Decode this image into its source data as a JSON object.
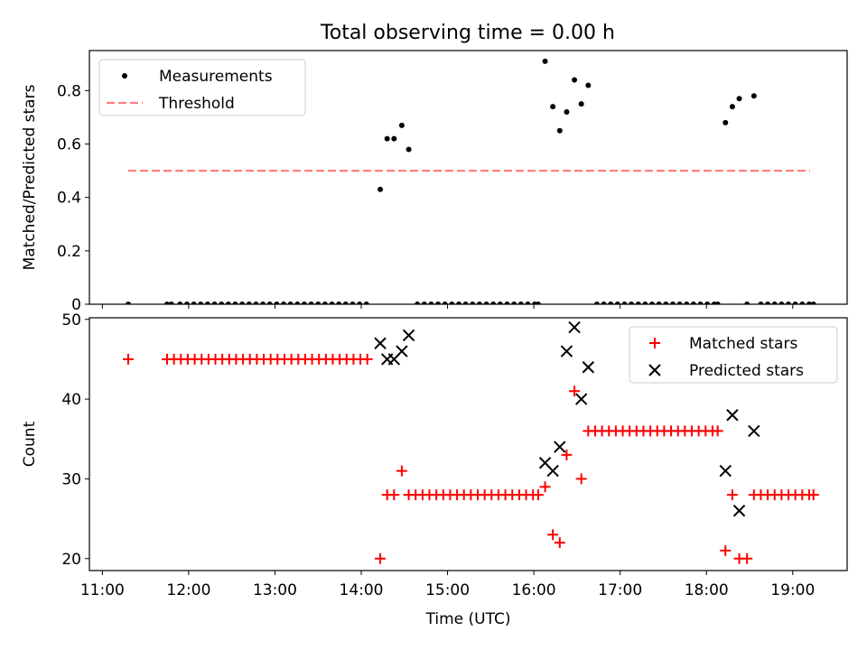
{
  "figure": {
    "title": "Total observing time = 0.00 h"
  },
  "chart_data": [
    {
      "type": "scatter",
      "ylabel": "Matched/Predicted stars",
      "xlim": [
        10.85,
        19.63
      ],
      "ylim": [
        0.0,
        0.95
      ],
      "yticks": [
        0.0,
        0.2,
        0.4,
        0.6,
        0.8
      ],
      "legend": {
        "position": "top-left"
      },
      "series": [
        {
          "name": "Measurements",
          "kind": "points",
          "color": "#000000",
          "points": [
            [
              11.3,
              0
            ],
            [
              11.75,
              0
            ],
            [
              11.8,
              0
            ],
            [
              11.9,
              0
            ],
            [
              11.98,
              0
            ],
            [
              12.06,
              0
            ],
            [
              12.14,
              0
            ],
            [
              12.22,
              0
            ],
            [
              12.3,
              0
            ],
            [
              12.38,
              0
            ],
            [
              12.46,
              0
            ],
            [
              12.54,
              0
            ],
            [
              12.62,
              0
            ],
            [
              12.7,
              0
            ],
            [
              12.78,
              0
            ],
            [
              12.86,
              0
            ],
            [
              12.94,
              0
            ],
            [
              13.02,
              0
            ],
            [
              13.1,
              0
            ],
            [
              13.18,
              0
            ],
            [
              13.26,
              0
            ],
            [
              13.34,
              0
            ],
            [
              13.42,
              0
            ],
            [
              13.5,
              0
            ],
            [
              13.58,
              0
            ],
            [
              13.66,
              0
            ],
            [
              13.74,
              0
            ],
            [
              13.82,
              0
            ],
            [
              13.9,
              0
            ],
            [
              13.98,
              0
            ],
            [
              14.06,
              0
            ],
            [
              14.22,
              0.43
            ],
            [
              14.3,
              0.62
            ],
            [
              14.38,
              0.62
            ],
            [
              14.47,
              0.67
            ],
            [
              14.55,
              0.58
            ],
            [
              14.65,
              0
            ],
            [
              14.73,
              0
            ],
            [
              14.81,
              0
            ],
            [
              14.89,
              0
            ],
            [
              14.97,
              0
            ],
            [
              15.05,
              0
            ],
            [
              15.13,
              0
            ],
            [
              15.21,
              0
            ],
            [
              15.29,
              0
            ],
            [
              15.37,
              0
            ],
            [
              15.45,
              0
            ],
            [
              15.53,
              0
            ],
            [
              15.61,
              0
            ],
            [
              15.69,
              0
            ],
            [
              15.77,
              0
            ],
            [
              15.85,
              0
            ],
            [
              15.93,
              0
            ],
            [
              16.01,
              0
            ],
            [
              16.05,
              0
            ],
            [
              16.13,
              0.91
            ],
            [
              16.22,
              0.74
            ],
            [
              16.3,
              0.65
            ],
            [
              16.38,
              0.72
            ],
            [
              16.47,
              0.84
            ],
            [
              16.55,
              0.75
            ],
            [
              16.63,
              0.82
            ],
            [
              16.73,
              0
            ],
            [
              16.81,
              0
            ],
            [
              16.89,
              0
            ],
            [
              16.97,
              0
            ],
            [
              17.05,
              0
            ],
            [
              17.13,
              0
            ],
            [
              17.21,
              0
            ],
            [
              17.29,
              0
            ],
            [
              17.37,
              0
            ],
            [
              17.45,
              0
            ],
            [
              17.53,
              0
            ],
            [
              17.61,
              0
            ],
            [
              17.69,
              0
            ],
            [
              17.77,
              0
            ],
            [
              17.85,
              0
            ],
            [
              17.93,
              0
            ],
            [
              18.01,
              0
            ],
            [
              18.09,
              0
            ],
            [
              18.13,
              0
            ],
            [
              18.22,
              0.68
            ],
            [
              18.3,
              0.74
            ],
            [
              18.38,
              0.77
            ],
            [
              18.55,
              0.78
            ],
            [
              18.47,
              0
            ],
            [
              18.63,
              0
            ],
            [
              18.71,
              0
            ],
            [
              18.79,
              0
            ],
            [
              18.87,
              0
            ],
            [
              18.95,
              0
            ],
            [
              19.03,
              0
            ],
            [
              19.11,
              0
            ],
            [
              19.19,
              0
            ],
            [
              19.24,
              0
            ]
          ]
        },
        {
          "name": "Threshold",
          "kind": "dashed-line",
          "color": "#ff7f7f",
          "points": [
            [
              11.3,
              0.5
            ],
            [
              19.2,
              0.5
            ]
          ]
        }
      ]
    },
    {
      "type": "scatter",
      "xlabel": "Time (UTC)",
      "ylabel": "Count",
      "xlim": [
        10.85,
        19.63
      ],
      "ylim": [
        18.5,
        50.2
      ],
      "yticks": [
        20,
        30,
        40,
        50
      ],
      "xticks": [
        11,
        12,
        13,
        14,
        15,
        16,
        17,
        18,
        19
      ],
      "xtick_labels": [
        "11:00",
        "12:00",
        "13:00",
        "14:00",
        "15:00",
        "16:00",
        "17:00",
        "18:00",
        "19:00"
      ],
      "legend": {
        "position": "top-right"
      },
      "series": [
        {
          "name": "Matched stars",
          "kind": "plus",
          "color": "#ff0000",
          "points": [
            [
              11.3,
              45
            ],
            [
              11.75,
              45
            ],
            [
              11.83,
              45
            ],
            [
              11.91,
              45
            ],
            [
              11.99,
              45
            ],
            [
              12.07,
              45
            ],
            [
              12.15,
              45
            ],
            [
              12.23,
              45
            ],
            [
              12.31,
              45
            ],
            [
              12.39,
              45
            ],
            [
              12.47,
              45
            ],
            [
              12.55,
              45
            ],
            [
              12.63,
              45
            ],
            [
              12.71,
              45
            ],
            [
              12.79,
              45
            ],
            [
              12.87,
              45
            ],
            [
              12.95,
              45
            ],
            [
              13.03,
              45
            ],
            [
              13.11,
              45
            ],
            [
              13.19,
              45
            ],
            [
              13.27,
              45
            ],
            [
              13.35,
              45
            ],
            [
              13.43,
              45
            ],
            [
              13.51,
              45
            ],
            [
              13.59,
              45
            ],
            [
              13.67,
              45
            ],
            [
              13.75,
              45
            ],
            [
              13.83,
              45
            ],
            [
              13.91,
              45
            ],
            [
              13.99,
              45
            ],
            [
              14.07,
              45
            ],
            [
              14.22,
              20
            ],
            [
              14.3,
              28
            ],
            [
              14.38,
              28
            ],
            [
              14.47,
              31
            ],
            [
              14.55,
              28
            ],
            [
              14.63,
              28
            ],
            [
              14.71,
              28
            ],
            [
              14.79,
              28
            ],
            [
              14.87,
              28
            ],
            [
              14.95,
              28
            ],
            [
              15.03,
              28
            ],
            [
              15.11,
              28
            ],
            [
              15.19,
              28
            ],
            [
              15.27,
              28
            ],
            [
              15.35,
              28
            ],
            [
              15.43,
              28
            ],
            [
              15.51,
              28
            ],
            [
              15.59,
              28
            ],
            [
              15.67,
              28
            ],
            [
              15.75,
              28
            ],
            [
              15.83,
              28
            ],
            [
              15.91,
              28
            ],
            [
              15.99,
              28
            ],
            [
              16.05,
              28
            ],
            [
              16.13,
              29
            ],
            [
              16.22,
              23
            ],
            [
              16.3,
              22
            ],
            [
              16.38,
              33
            ],
            [
              16.47,
              41
            ],
            [
              16.55,
              30
            ],
            [
              16.63,
              36
            ],
            [
              16.71,
              36
            ],
            [
              16.79,
              36
            ],
            [
              16.87,
              36
            ],
            [
              16.95,
              36
            ],
            [
              17.03,
              36
            ],
            [
              17.11,
              36
            ],
            [
              17.19,
              36
            ],
            [
              17.27,
              36
            ],
            [
              17.35,
              36
            ],
            [
              17.43,
              36
            ],
            [
              17.51,
              36
            ],
            [
              17.59,
              36
            ],
            [
              17.67,
              36
            ],
            [
              17.75,
              36
            ],
            [
              17.83,
              36
            ],
            [
              17.91,
              36
            ],
            [
              17.99,
              36
            ],
            [
              18.07,
              36
            ],
            [
              18.13,
              36
            ],
            [
              18.22,
              21
            ],
            [
              18.3,
              28
            ],
            [
              18.38,
              20
            ],
            [
              18.47,
              20
            ],
            [
              18.55,
              28
            ],
            [
              18.63,
              28
            ],
            [
              18.71,
              28
            ],
            [
              18.79,
              28
            ],
            [
              18.87,
              28
            ],
            [
              18.95,
              28
            ],
            [
              19.03,
              28
            ],
            [
              19.11,
              28
            ],
            [
              19.19,
              28
            ],
            [
              19.24,
              28
            ]
          ]
        },
        {
          "name": "Predicted stars",
          "kind": "x",
          "color": "#000000",
          "points": [
            [
              14.22,
              47
            ],
            [
              14.3,
              45
            ],
            [
              14.38,
              45
            ],
            [
              14.47,
              46
            ],
            [
              14.55,
              48
            ],
            [
              16.13,
              32
            ],
            [
              16.22,
              31
            ],
            [
              16.3,
              34
            ],
            [
              16.38,
              46
            ],
            [
              16.47,
              49
            ],
            [
              16.55,
              40
            ],
            [
              16.63,
              44
            ],
            [
              18.22,
              31
            ],
            [
              18.3,
              38
            ],
            [
              18.38,
              26
            ],
            [
              18.55,
              36
            ]
          ]
        }
      ]
    }
  ]
}
